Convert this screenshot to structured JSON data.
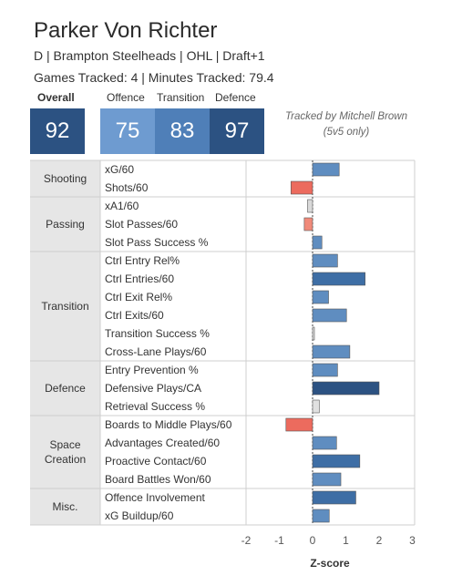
{
  "player": {
    "name": "Parker Von Richter",
    "info": "D | Brampton Steelheads | OHL | Draft+1",
    "tracking": "Games Tracked: 4 | Minutes Tracked: 79.4"
  },
  "ratings": {
    "overall_label": "Overall",
    "overall_value": "92",
    "offence_label": "Offence",
    "offence_value": "75",
    "transition_label": "Transition",
    "transition_value": "83",
    "defence_label": "Defence",
    "defence_value": "97"
  },
  "credit": [
    "Tracked by Mitchell Brown",
    "(5v5 only)"
  ],
  "colors": {
    "dark_blue": "#2c5282",
    "mid_blue": "#5f8dc0",
    "light_blue": "#6e9bd0",
    "red": "#ec6b5e",
    "light_red": "#f08a7a",
    "grey": "#d9d9d9",
    "row_group_bg": "#e6e6e6"
  },
  "chart_data": {
    "type": "bar",
    "orientation": "horizontal",
    "xlabel": "Z-score",
    "xlim": [
      -2.3,
      3.2
    ],
    "xticks": [
      -2,
      -1,
      0,
      1,
      2,
      3
    ],
    "groups": [
      {
        "name": "Shooting",
        "metrics": [
          {
            "label": "xG/60",
            "value": 0.8
          },
          {
            "label": "Shots/60",
            "value": -0.65
          }
        ]
      },
      {
        "name": "Passing",
        "metrics": [
          {
            "label": "xA1/60",
            "value": -0.15
          },
          {
            "label": "Slot Passes/60",
            "value": -0.25
          },
          {
            "label": "Slot Pass Success %",
            "value": 0.28
          }
        ]
      },
      {
        "name": "Transition",
        "metrics": [
          {
            "label": "Ctrl Entry Rel%",
            "value": 0.75
          },
          {
            "label": "Ctrl Entries/60",
            "value": 1.58
          },
          {
            "label": "Ctrl Exit Rel%",
            "value": 0.48
          },
          {
            "label": "Ctrl Exits/60",
            "value": 1.02
          },
          {
            "label": "Transition Success %",
            "value": 0.05
          },
          {
            "label": "Cross-Lane Plays/60",
            "value": 1.12
          }
        ]
      },
      {
        "name": "Defence",
        "metrics": [
          {
            "label": "Entry Prevention %",
            "value": 0.75
          },
          {
            "label": "Defensive Plays/CA",
            "value": 2.0
          },
          {
            "label": "Retrieval Success %",
            "value": 0.2
          }
        ]
      },
      {
        "name": "Space\nCreation",
        "metrics": [
          {
            "label": "Boards to Middle Plays/60",
            "value": -0.8
          },
          {
            "label": "Advantages Created/60",
            "value": 0.72
          },
          {
            "label": "Proactive Contact/60",
            "value": 1.42
          },
          {
            "label": "Board Battles Won/60",
            "value": 0.85
          }
        ]
      },
      {
        "name": "Misc.",
        "metrics": [
          {
            "label": "Offence Involvement",
            "value": 1.3
          },
          {
            "label": "xG Buildup/60",
            "value": 0.5
          }
        ]
      }
    ]
  }
}
